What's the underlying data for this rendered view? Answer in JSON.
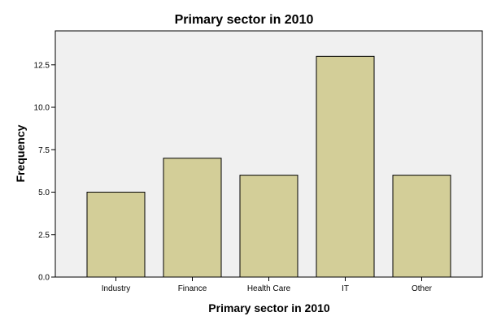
{
  "chart_data": {
    "type": "bar",
    "title": "Primary sector in 2010",
    "xlabel": "Primary sector in 2010",
    "ylabel": "Frequency",
    "categories": [
      "Industry",
      "Finance",
      "Health Care",
      "IT",
      "Other"
    ],
    "values": [
      5,
      7,
      6,
      13,
      6
    ],
    "ylim": [
      0,
      14.5
    ],
    "yticks": [
      0,
      2.5,
      5,
      7.5,
      10,
      12.5
    ],
    "ytick_labels": [
      "0.0",
      "2.5",
      "5.0",
      "7.5",
      "10.0",
      "12.5"
    ],
    "grid": false,
    "legend": "none",
    "colors": {
      "bar_fill": "#D3CE98",
      "bar_stroke": "#000000",
      "plot_background": "#F0F0F0",
      "page_background": "#FFFFFF"
    }
  }
}
